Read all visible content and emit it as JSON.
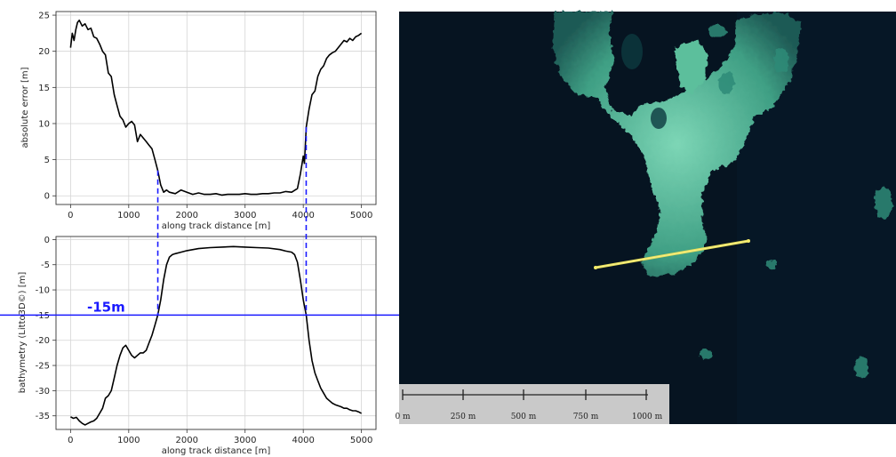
{
  "chart_data": [
    {
      "type": "line",
      "xlabel": "along track distance [m]",
      "ylabel": "absolute error [m]",
      "xlim": [
        -250,
        5250
      ],
      "ylim": [
        -1.2,
        25.5
      ],
      "xticks": [
        0,
        1000,
        2000,
        3000,
        4000,
        5000
      ],
      "yticks": [
        0,
        5,
        10,
        15,
        20,
        25
      ],
      "grid": true,
      "series": [
        {
          "color": "#000000",
          "x": [
            0,
            30,
            60,
            90,
            120,
            150,
            200,
            250,
            300,
            350,
            400,
            450,
            500,
            550,
            600,
            650,
            700,
            750,
            800,
            850,
            900,
            950,
            1000,
            1050,
            1100,
            1150,
            1200,
            1250,
            1300,
            1350,
            1400,
            1450,
            1500,
            1550,
            1600,
            1650,
            1700,
            1800,
            1900,
            2000,
            2100,
            2200,
            2300,
            2400,
            2500,
            2600,
            2700,
            2800,
            2900,
            3000,
            3100,
            3200,
            3300,
            3400,
            3500,
            3600,
            3700,
            3800,
            3900,
            3950,
            4000,
            4020,
            4050,
            4100,
            4150,
            4200,
            4250,
            4300,
            4350,
            4400,
            4450,
            4500,
            4550,
            4600,
            4650,
            4700,
            4750,
            4800,
            4850,
            4900,
            4950,
            5000
          ],
          "y": [
            20.5,
            22.5,
            21.5,
            23.0,
            24.0,
            24.3,
            23.5,
            23.8,
            23.0,
            23.2,
            22.0,
            21.8,
            21.0,
            20.0,
            19.5,
            17.0,
            16.5,
            14.0,
            12.5,
            11.0,
            10.5,
            9.5,
            10.0,
            10.3,
            9.8,
            7.5,
            8.5,
            8.0,
            7.5,
            7.0,
            6.5,
            5.0,
            3.5,
            1.5,
            0.5,
            0.8,
            0.5,
            0.3,
            0.8,
            0.5,
            0.2,
            0.4,
            0.2,
            0.2,
            0.3,
            0.1,
            0.2,
            0.2,
            0.2,
            0.3,
            0.2,
            0.2,
            0.3,
            0.3,
            0.4,
            0.4,
            0.6,
            0.5,
            1.0,
            3.0,
            5.5,
            4.5,
            9.5,
            12.0,
            14.0,
            14.5,
            16.5,
            17.5,
            18.0,
            19.0,
            19.5,
            19.8,
            20.0,
            20.5,
            21.0,
            21.5,
            21.3,
            21.8,
            21.5,
            22.0,
            22.2,
            22.5
          ]
        }
      ]
    },
    {
      "type": "line",
      "xlabel": "along track distance [m]",
      "ylabel": "bathymetry (Litto3D©) [m]",
      "xlim": [
        -250,
        5250
      ],
      "ylim": [
        -37.7,
        0.6
      ],
      "xticks": [
        0,
        1000,
        2000,
        3000,
        4000,
        5000
      ],
      "yticks": [
        0,
        -5,
        -10,
        -15,
        -20,
        -25,
        -30,
        -35
      ],
      "grid": true,
      "hline": {
        "y": -15,
        "label": "-15m",
        "color": "#1a1aff"
      },
      "vlines": [
        1500,
        4050
      ],
      "series": [
        {
          "color": "#000000",
          "x": [
            0,
            50,
            100,
            150,
            200,
            250,
            300,
            350,
            400,
            450,
            500,
            550,
            600,
            650,
            700,
            750,
            800,
            850,
            900,
            950,
            1000,
            1050,
            1100,
            1150,
            1200,
            1250,
            1300,
            1350,
            1400,
            1450,
            1500,
            1550,
            1600,
            1650,
            1700,
            1750,
            1800,
            1900,
            2000,
            2200,
            2400,
            2600,
            2800,
            3000,
            3200,
            3400,
            3600,
            3700,
            3800,
            3850,
            3900,
            3950,
            4000,
            4050,
            4100,
            4150,
            4200,
            4250,
            4300,
            4350,
            4400,
            4450,
            4500,
            4550,
            4600,
            4650,
            4700,
            4750,
            4800,
            4850,
            4900,
            4950,
            5000
          ],
          "y": [
            -35.2,
            -35.5,
            -35.3,
            -36.0,
            -36.5,
            -36.8,
            -36.5,
            -36.2,
            -36.0,
            -35.5,
            -34.5,
            -33.5,
            -31.5,
            -31.0,
            -30.0,
            -27.5,
            -25.0,
            -23.0,
            -21.5,
            -21.0,
            -22.0,
            -23.0,
            -23.5,
            -23.0,
            -22.5,
            -22.5,
            -22.0,
            -20.5,
            -19.0,
            -17.0,
            -15.0,
            -12.0,
            -8.0,
            -5.0,
            -3.5,
            -3.0,
            -2.8,
            -2.5,
            -2.2,
            -1.8,
            -1.6,
            -1.5,
            -1.4,
            -1.5,
            -1.6,
            -1.7,
            -2.0,
            -2.3,
            -2.5,
            -3.0,
            -4.5,
            -8.0,
            -12.0,
            -15.0,
            -20.0,
            -24.0,
            -26.5,
            -28.0,
            -29.5,
            -30.5,
            -31.5,
            -32.0,
            -32.5,
            -32.8,
            -33.0,
            -33.2,
            -33.5,
            -33.5,
            -33.8,
            -34.0,
            -34.0,
            -34.2,
            -34.5
          ]
        }
      ]
    }
  ],
  "scale_bar": {
    "labels": [
      "0 m",
      "250 m",
      "500 m",
      "750 m",
      "1000 m"
    ]
  }
}
